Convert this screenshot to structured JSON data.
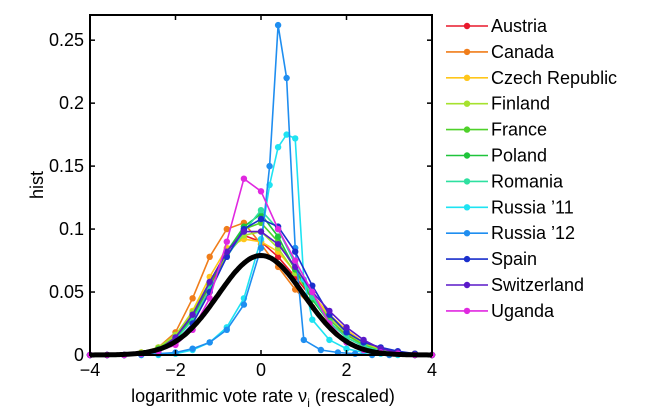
{
  "chart_data": {
    "type": "line",
    "xlabel": "logarithmic vote rate ν",
    "xlabel_subscript": "i",
    "xlabel_suffix": " (rescaled)",
    "ylabel": "hist",
    "xlim": [
      -4,
      4
    ],
    "ylim": [
      0,
      0.27
    ],
    "x_ticks": [
      -4,
      -2,
      0,
      2,
      4
    ],
    "x_tick_labels": [
      "−4",
      "−2",
      "0",
      "2",
      "4"
    ],
    "y_ticks": [
      0,
      0.05,
      0.1,
      0.15,
      0.2,
      0.25
    ],
    "y_tick_labels": [
      "0",
      "0.05",
      "0.1",
      "0.15",
      "0.2",
      "0.25"
    ],
    "grid": false,
    "legend_position": "right",
    "series": [
      {
        "name": "Austria",
        "color": "#e8192c",
        "marker": "dot",
        "x": [
          -4,
          -3.6,
          -3.2,
          -2.8,
          -2.4,
          -2.0,
          -1.6,
          -1.2,
          -0.8,
          -0.4,
          0.0,
          0.4,
          0.8,
          1.2,
          1.6,
          2.0,
          2.4,
          2.8,
          3.2,
          3.6,
          4.0
        ],
        "y": [
          0,
          0,
          0,
          0.001,
          0.004,
          0.012,
          0.03,
          0.055,
          0.08,
          0.095,
          0.09,
          0.078,
          0.062,
          0.045,
          0.03,
          0.018,
          0.01,
          0.004,
          0.002,
          0.001,
          0
        ]
      },
      {
        "name": "Canada",
        "color": "#f07d1a",
        "marker": "dot",
        "x": [
          -4,
          -3.6,
          -3.2,
          -2.8,
          -2.4,
          -2.0,
          -1.6,
          -1.2,
          -0.8,
          -0.4,
          0.0,
          0.4,
          0.8,
          1.2,
          1.6,
          2.0,
          2.4,
          2.8,
          3.2,
          3.6,
          4.0
        ],
        "y": [
          0,
          0,
          0,
          0.002,
          0.006,
          0.018,
          0.045,
          0.078,
          0.1,
          0.105,
          0.088,
          0.07,
          0.052,
          0.038,
          0.025,
          0.016,
          0.01,
          0.005,
          0.002,
          0.001,
          0
        ]
      },
      {
        "name": "Czech Republic",
        "color": "#ffc61a",
        "marker": "dot",
        "x": [
          -4,
          -3.6,
          -3.2,
          -2.8,
          -2.4,
          -2.0,
          -1.6,
          -1.2,
          -0.8,
          -0.4,
          0.0,
          0.4,
          0.8,
          1.2,
          1.6,
          2.0,
          2.4,
          2.8,
          3.2,
          3.6,
          4.0
        ],
        "y": [
          0,
          0,
          0,
          0.001,
          0.004,
          0.015,
          0.035,
          0.062,
          0.085,
          0.092,
          0.09,
          0.082,
          0.066,
          0.048,
          0.032,
          0.02,
          0.01,
          0.004,
          0.002,
          0,
          0
        ]
      },
      {
        "name": "Finland",
        "color": "#a6e22e",
        "marker": "dot",
        "x": [
          -4,
          -3.6,
          -3.2,
          -2.8,
          -2.4,
          -2.0,
          -1.6,
          -1.2,
          -0.8,
          -0.4,
          0.0,
          0.4,
          0.8,
          1.2,
          1.6,
          2.0,
          2.4,
          2.8,
          3.2,
          3.6,
          4.0
        ],
        "y": [
          0,
          0,
          0,
          0.002,
          0.006,
          0.016,
          0.034,
          0.058,
          0.08,
          0.095,
          0.098,
          0.085,
          0.065,
          0.046,
          0.03,
          0.018,
          0.009,
          0.004,
          0.002,
          0.001,
          0
        ]
      },
      {
        "name": "France",
        "color": "#4fd12a",
        "marker": "dot",
        "x": [
          -4,
          -3.6,
          -3.2,
          -2.8,
          -2.4,
          -2.0,
          -1.6,
          -1.2,
          -0.8,
          -0.4,
          0.0,
          0.4,
          0.8,
          1.2,
          1.6,
          2.0,
          2.4,
          2.8,
          3.2,
          3.6,
          4.0
        ],
        "y": [
          0,
          0,
          0,
          0.001,
          0.005,
          0.014,
          0.032,
          0.058,
          0.082,
          0.1,
          0.105,
          0.09,
          0.068,
          0.046,
          0.028,
          0.016,
          0.008,
          0.003,
          0.001,
          0,
          0
        ]
      },
      {
        "name": "Poland",
        "color": "#1fc43b",
        "marker": "dot",
        "x": [
          -4,
          -3.6,
          -3.2,
          -2.8,
          -2.4,
          -2.0,
          -1.6,
          -1.2,
          -0.8,
          -0.4,
          0.0,
          0.4,
          0.8,
          1.2,
          1.6,
          2.0,
          2.4,
          2.8,
          3.2,
          3.6,
          4.0
        ],
        "y": [
          0,
          0,
          0,
          0.001,
          0.004,
          0.012,
          0.03,
          0.056,
          0.082,
          0.102,
          0.112,
          0.094,
          0.068,
          0.044,
          0.026,
          0.014,
          0.007,
          0.003,
          0.001,
          0,
          0
        ]
      },
      {
        "name": "Romania",
        "color": "#2ee0a0",
        "marker": "dot",
        "x": [
          -4,
          -3.6,
          -3.2,
          -2.8,
          -2.4,
          -2.0,
          -1.6,
          -1.2,
          -0.8,
          -0.4,
          0.0,
          0.4,
          0.8,
          1.2,
          1.6,
          2.0,
          2.4,
          2.8,
          3.2,
          3.6,
          4.0
        ],
        "y": [
          0,
          0,
          0,
          0.001,
          0.004,
          0.012,
          0.028,
          0.052,
          0.078,
          0.098,
          0.115,
          0.1,
          0.072,
          0.046,
          0.026,
          0.014,
          0.007,
          0.003,
          0.001,
          0,
          0
        ]
      },
      {
        "name": "Russia ’11",
        "color": "#1ee3f2",
        "marker": "dot",
        "x": [
          -4,
          -3.6,
          -3.2,
          -2.8,
          -2.4,
          -2.0,
          -1.6,
          -1.2,
          -0.8,
          -0.4,
          0.0,
          0.2,
          0.4,
          0.6,
          0.8,
          1.0,
          1.2,
          1.6,
          2.0,
          2.4,
          2.8,
          3.2
        ],
        "y": [
          0,
          0,
          0,
          0,
          0,
          0.001,
          0.004,
          0.01,
          0.022,
          0.045,
          0.092,
          0.135,
          0.165,
          0.175,
          0.172,
          0.06,
          0.028,
          0.012,
          0.005,
          0.002,
          0.001,
          0
        ]
      },
      {
        "name": "Russia ’12",
        "color": "#1f8ef0",
        "marker": "dot",
        "x": [
          -4,
          -3.6,
          -3.2,
          -2.8,
          -2.4,
          -2.0,
          -1.6,
          -1.2,
          -0.8,
          -0.4,
          0.0,
          0.2,
          0.4,
          0.6,
          0.8,
          1.0,
          1.4,
          1.8,
          2.2,
          2.6,
          3.0
        ],
        "y": [
          0,
          0,
          0,
          0,
          0.001,
          0.002,
          0.005,
          0.01,
          0.02,
          0.04,
          0.085,
          0.15,
          0.262,
          0.22,
          0.085,
          0.012,
          0.004,
          0.002,
          0.001,
          0,
          0
        ]
      },
      {
        "name": "Spain",
        "color": "#1a2fcc",
        "marker": "dot",
        "x": [
          -4,
          -3.6,
          -3.2,
          -2.8,
          -2.4,
          -2.0,
          -1.6,
          -1.2,
          -0.8,
          -0.4,
          0.0,
          0.4,
          0.8,
          1.2,
          1.6,
          2.0,
          2.4,
          2.8,
          3.2,
          3.6,
          4.0
        ],
        "y": [
          0,
          0,
          0,
          0.001,
          0.003,
          0.01,
          0.025,
          0.05,
          0.078,
          0.1,
          0.108,
          0.102,
          0.082,
          0.055,
          0.032,
          0.018,
          0.01,
          0.006,
          0.003,
          0.001,
          0
        ]
      },
      {
        "name": "Switzerland",
        "color": "#5a18c9",
        "marker": "dot",
        "x": [
          -4,
          -3.6,
          -3.2,
          -2.8,
          -2.4,
          -2.0,
          -1.6,
          -1.2,
          -0.8,
          -0.4,
          0.0,
          0.4,
          0.8,
          1.2,
          1.6,
          2.0,
          2.4,
          2.8,
          3.2,
          3.6,
          4.0
        ],
        "y": [
          0,
          0,
          0,
          0.001,
          0.004,
          0.014,
          0.032,
          0.058,
          0.082,
          0.098,
          0.098,
          0.088,
          0.07,
          0.05,
          0.035,
          0.022,
          0.012,
          0.005,
          0.002,
          0,
          0
        ]
      },
      {
        "name": "Uganda",
        "color": "#e028e0",
        "marker": "dot",
        "x": [
          -4,
          -3.6,
          -3.2,
          -2.8,
          -2.4,
          -2.0,
          -1.6,
          -1.2,
          -0.8,
          -0.4,
          0.0,
          0.4,
          0.8,
          1.2,
          1.6,
          2.0,
          2.4,
          2.8,
          3.2,
          3.6,
          4.0
        ],
        "y": [
          0,
          0,
          0,
          0.001,
          0.003,
          0.008,
          0.02,
          0.045,
          0.09,
          0.14,
          0.13,
          0.1,
          0.075,
          0.05,
          0.025,
          0.01,
          0.004,
          0.002,
          0.001,
          0,
          0
        ]
      }
    ],
    "reference_curve": {
      "type": "gaussian",
      "mean": 0,
      "std": 1,
      "peak": 0.079,
      "color": "#000000"
    }
  }
}
